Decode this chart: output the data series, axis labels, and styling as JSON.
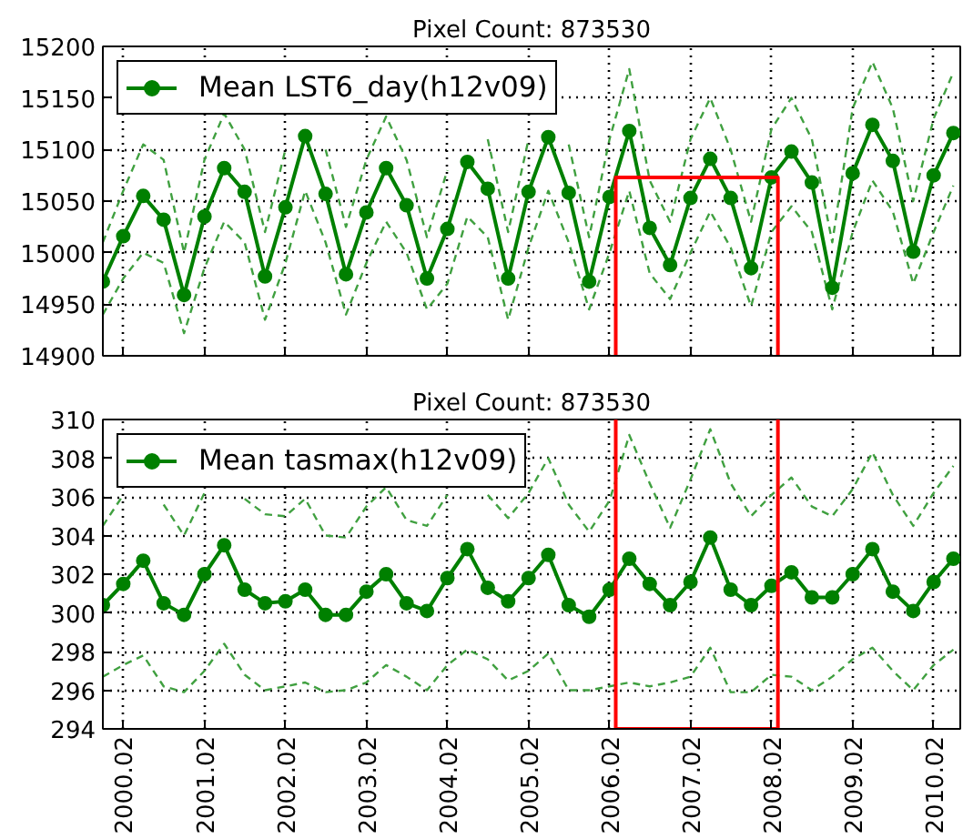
{
  "chart_data": [
    {
      "type": "line",
      "title": "Pixel Count: 873530",
      "x": [
        "1999-11",
        "2000-02",
        "2000-05",
        "2000-08",
        "2000-11",
        "2001-02",
        "2001-05",
        "2001-08",
        "2001-11",
        "2002-02",
        "2002-05",
        "2002-08",
        "2002-11",
        "2003-02",
        "2003-05",
        "2003-08",
        "2003-11",
        "2004-02",
        "2004-05",
        "2004-08",
        "2004-11",
        "2005-02",
        "2005-05",
        "2005-08",
        "2005-11",
        "2006-02",
        "2006-05",
        "2006-08",
        "2006-11",
        "2007-02",
        "2007-05",
        "2007-08",
        "2007-11",
        "2008-02",
        "2008-05",
        "2008-08",
        "2008-11",
        "2009-02",
        "2009-05",
        "2009-08",
        "2009-11",
        "2010-02",
        "2010-05"
      ],
      "xlim": [
        "1999-11",
        "2010-06"
      ],
      "xticks": [
        {
          "value": "2000-02",
          "label": null
        },
        {
          "value": "2001-02",
          "label": null
        },
        {
          "value": "2002-02",
          "label": null
        },
        {
          "value": "2003-02",
          "label": null
        },
        {
          "value": "2004-02",
          "label": null
        },
        {
          "value": "2005-02",
          "label": null
        },
        {
          "value": "2006-02",
          "label": null
        },
        {
          "value": "2007-02",
          "label": null
        },
        {
          "value": "2008-02",
          "label": null
        },
        {
          "value": "2009-02",
          "label": null
        },
        {
          "value": "2010-02",
          "label": null
        }
      ],
      "ylim": [
        14900,
        15200
      ],
      "yticks": [
        14900,
        14950,
        15000,
        15050,
        15100,
        15150,
        15200
      ],
      "tick_labels": "y",
      "grid": true,
      "legend": "top left",
      "marker": "circle",
      "line_style": "solid",
      "series": [
        {
          "color": "#40a040",
          "line_style": "dashed",
          "marker": "none",
          "values": [
            15010,
            15060,
            15105,
            15090,
            15000,
            15090,
            15135,
            15100,
            15020,
            15100,
            null,
            15100,
            15025,
            15090,
            15132,
            15090,
            15015,
            15080,
            null,
            15110,
            15020,
            15110,
            null,
            15105,
            15015,
            15110,
            15178,
            15070,
            15030,
            15110,
            15150,
            15100,
            15030,
            15120,
            15150,
            15110,
            15010,
            15140,
            15185,
            15140,
            15050,
            15130,
            15175
          ]
        },
        {
          "color": "#40a040",
          "line_style": "dashed",
          "marker": "none",
          "values": [
            14940,
            14975,
            15000,
            14990,
            14922,
            14985,
            15030,
            15010,
            14935,
            14990,
            15060,
            15010,
            14940,
            14990,
            15030,
            15000,
            14945,
            14970,
            15035,
            15015,
            14935,
            15005,
            15060,
            15010,
            14945,
            15000,
            15060,
            14980,
            14955,
            15000,
            15040,
            15005,
            14948,
            15020,
            15045,
            15020,
            14945,
            15020,
            15070,
            15040,
            14970,
            15020,
            15065
          ]
        },
        {
          "name": "Mean LST6_day(h12v09)",
          "color": "#008000",
          "values": [
            14972,
            15016,
            15055,
            15032,
            14959,
            15035,
            15082,
            15059,
            14977,
            15044,
            15113,
            15057,
            14979,
            15039,
            15082,
            15046,
            14975,
            15023,
            15088,
            15062,
            14975,
            15059,
            15112,
            15058,
            14972,
            15054,
            15118,
            15024,
            14988,
            15053,
            15091,
            15053,
            14985,
            15073,
            15098,
            15068,
            14966,
            15077,
            15124,
            15089,
            15001,
            15075,
            15116
          ]
        },
        {
          "color": "#ff0000",
          "marker": "none",
          "x": [
            "2006-03",
            "2006-03",
            "2008-03",
            "2008-03"
          ],
          "values": [
            14900,
            15073,
            15073,
            14900
          ]
        }
      ]
    },
    {
      "type": "line",
      "title": "Pixel Count: 873530",
      "x": [
        "1999-11",
        "2000-02",
        "2000-05",
        "2000-08",
        "2000-11",
        "2001-02",
        "2001-05",
        "2001-08",
        "2001-11",
        "2002-02",
        "2002-05",
        "2002-08",
        "2002-11",
        "2003-02",
        "2003-05",
        "2003-08",
        "2003-11",
        "2004-02",
        "2004-05",
        "2004-08",
        "2004-11",
        "2005-02",
        "2005-05",
        "2005-08",
        "2005-11",
        "2006-02",
        "2006-05",
        "2006-08",
        "2006-11",
        "2007-02",
        "2007-05",
        "2007-08",
        "2007-11",
        "2008-02",
        "2008-05",
        "2008-08",
        "2008-11",
        "2009-02",
        "2009-05",
        "2009-08",
        "2009-11",
        "2010-02",
        "2010-05"
      ],
      "xlim": [
        "1999-11",
        "2010-06"
      ],
      "xticks": [
        {
          "value": "2000-02",
          "label": "2000.02"
        },
        {
          "value": "2001-02",
          "label": "2001.02"
        },
        {
          "value": "2002-02",
          "label": "2002.02"
        },
        {
          "value": "2003-02",
          "label": "2003.02"
        },
        {
          "value": "2004-02",
          "label": "2004.02"
        },
        {
          "value": "2005-02",
          "label": "2005.02"
        },
        {
          "value": "2006-02",
          "label": "2006.02"
        },
        {
          "value": "2007-02",
          "label": "2007.02"
        },
        {
          "value": "2008-02",
          "label": "2008.02"
        },
        {
          "value": "2009-02",
          "label": "2009.02"
        },
        {
          "value": "2010-02",
          "label": "2010.02"
        }
      ],
      "ylim": [
        294,
        310
      ],
      "yticks": [
        294,
        296,
        298,
        300,
        302,
        304,
        306,
        308,
        310
      ],
      "grid": true,
      "legend": "top left",
      "marker": "circle",
      "line_style": "solid",
      "series": [
        {
          "color": "#40a040",
          "line_style": "dashed",
          "marker": "none",
          "values": [
            304.5,
            306.1,
            null,
            305.6,
            304.0,
            306.2,
            null,
            305.9,
            305.1,
            305.0,
            305.9,
            304.0,
            303.9,
            305.5,
            306.5,
            304.8,
            304.5,
            306.1,
            null,
            306.1,
            304.9,
            306.2,
            308.0,
            305.6,
            304.2,
            305.8,
            309.2,
            306.7,
            304.4,
            306.9,
            309.5,
            306.7,
            305.0,
            306.1,
            307.0,
            305.5,
            305.0,
            306.4,
            308.3,
            306.1,
            304.5,
            306.2,
            307.6
          ]
        },
        {
          "color": "#40a040",
          "line_style": "dashed",
          "marker": "none",
          "values": [
            296.7,
            297.3,
            297.8,
            296.2,
            295.9,
            297.0,
            298.4,
            296.8,
            296.0,
            296.2,
            296.4,
            295.9,
            296.0,
            296.4,
            297.3,
            296.7,
            296.0,
            297.3,
            298.1,
            297.6,
            296.5,
            297.0,
            297.9,
            296.0,
            296.0,
            296.2,
            296.4,
            296.2,
            296.4,
            296.7,
            298.2,
            295.9,
            295.9,
            296.8,
            296.7,
            296.0,
            296.7,
            297.6,
            298.2,
            297.0,
            296.0,
            297.3,
            298.1
          ]
        },
        {
          "name": "Mean tasmax(h12v09)",
          "color": "#008000",
          "values": [
            300.4,
            301.5,
            302.7,
            300.5,
            299.9,
            302.0,
            303.5,
            301.2,
            300.5,
            300.6,
            301.2,
            299.9,
            299.9,
            301.1,
            302.0,
            300.5,
            300.1,
            301.8,
            303.3,
            301.3,
            300.6,
            301.8,
            303.0,
            300.4,
            299.8,
            301.2,
            302.8,
            301.5,
            300.4,
            301.6,
            303.9,
            301.2,
            300.4,
            301.4,
            302.1,
            300.8,
            300.8,
            302.0,
            303.3,
            301.1,
            300.1,
            301.6,
            302.8
          ]
        },
        {
          "color": "#ff0000",
          "marker": "none",
          "x": [
            "2006-03",
            "2006-03",
            "2008-03",
            "2008-03"
          ],
          "values": [
            310,
            294,
            294,
            310
          ]
        }
      ]
    }
  ]
}
